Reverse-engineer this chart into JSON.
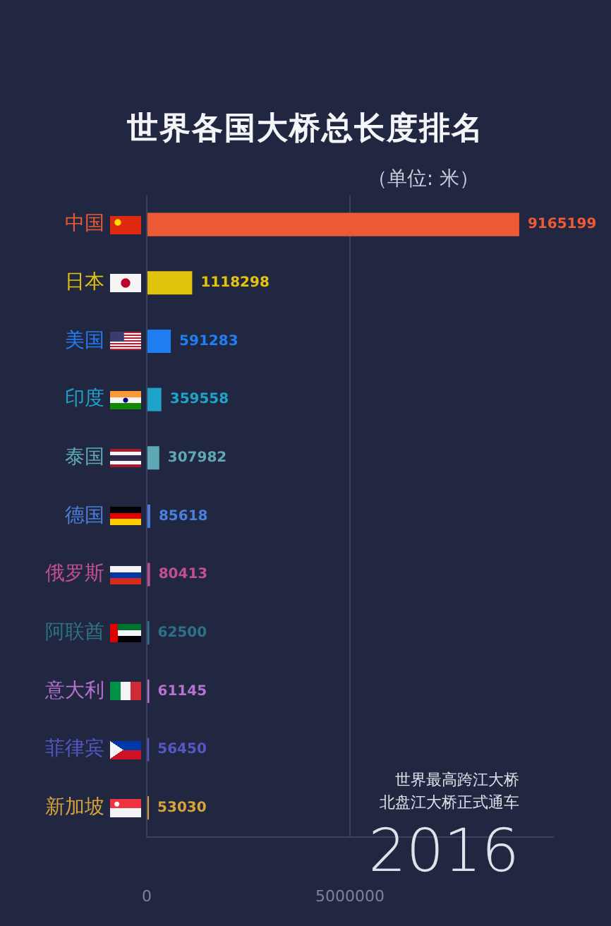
{
  "chart_data": {
    "type": "bar",
    "orientation": "horizontal",
    "title": "世界各国大桥总长度排名",
    "subtitle": "（单位: 米）",
    "categories": [
      "中国",
      "日本",
      "美国",
      "印度",
      "泰国",
      "德国",
      "俄罗斯",
      "阿联酋",
      "意大利",
      "菲律宾",
      "新加坡"
    ],
    "values": [
      9165199,
      1118298,
      591283,
      359558,
      307982,
      85618,
      80413,
      62500,
      61145,
      56450,
      53030
    ],
    "colors": [
      "#ec5a36",
      "#e2c40c",
      "#1f7ef2",
      "#1ea3c9",
      "#5fa9b7",
      "#4b7fdc",
      "#c24f93",
      "#2e7184",
      "#b473cf",
      "#5656c4",
      "#d6a23a"
    ],
    "xlim": [
      0,
      10000000
    ],
    "xticks": [
      0,
      5000000
    ],
    "grid": "x",
    "data_labels": true,
    "annotations": [
      "世界最高跨江大桥",
      "北盘江大桥正式通车",
      "2016"
    ]
  }
}
